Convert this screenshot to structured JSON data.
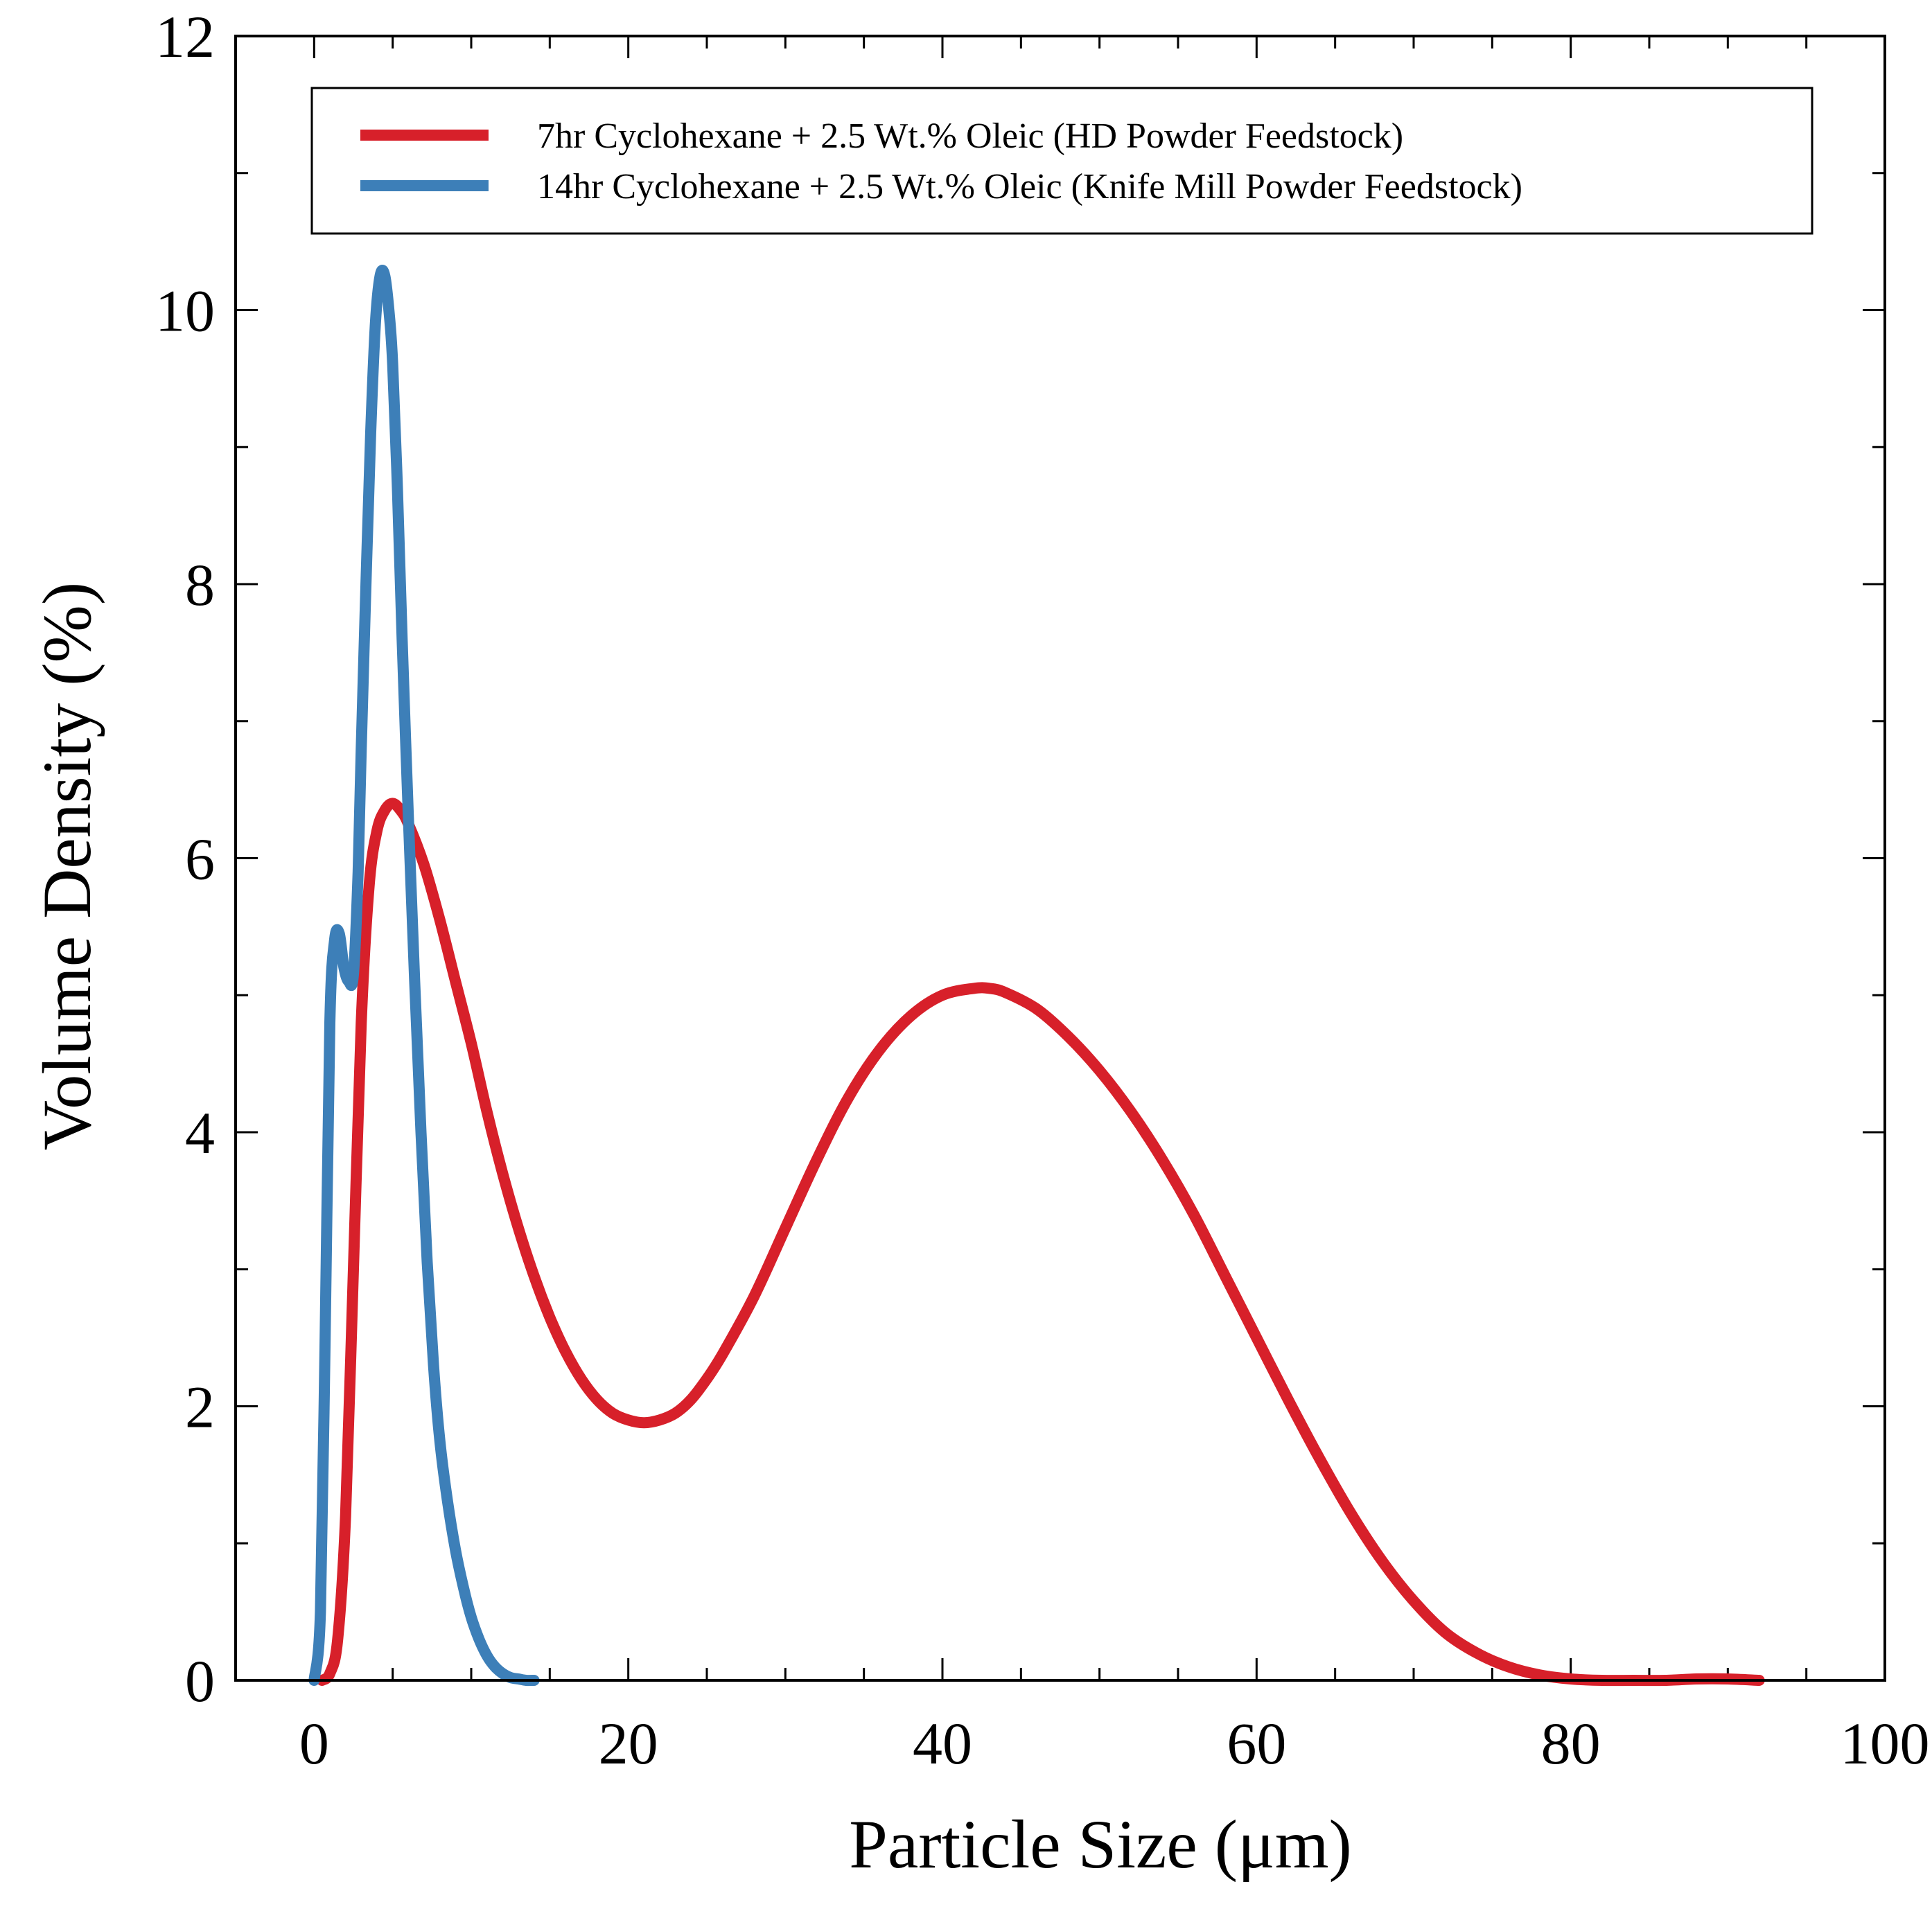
{
  "chart_data": {
    "type": "line",
    "title": "",
    "xlabel": "Particle Size (μm)",
    "ylabel": "Volume Density (%)",
    "xlim": [
      -5,
      100
    ],
    "ylim": [
      0,
      12
    ],
    "xticks": [
      0,
      20,
      40,
      60,
      80,
      100
    ],
    "xtick_labels": [
      "0",
      "20",
      "40",
      "60",
      "80",
      "100"
    ],
    "yticks": [
      0,
      2,
      4,
      6,
      8,
      10,
      12
    ],
    "ytick_labels": [
      "0",
      "2",
      "4",
      "6",
      "8",
      "10",
      "12"
    ],
    "grid": false,
    "legend_position": "top",
    "series": [
      {
        "name": "7hr Cyclohexane + 2.5 Wt.% Oleic (HD Powder Feedstock)",
        "color": "#d7202a",
        "x": [
          0.5,
          1.0,
          1.5,
          2.0,
          2.5,
          3.0,
          3.5,
          4.0,
          4.5,
          5.0,
          5.5,
          6.0,
          7.0,
          8.0,
          9.0,
          10.0,
          11.0,
          12.0,
          13.0,
          14.0,
          15.0,
          16.0,
          17.0,
          18.0,
          19.0,
          20.0,
          21.0,
          22.0,
          23.0,
          24.0,
          25.0,
          26.0,
          28.0,
          30.0,
          32.0,
          34.0,
          36.0,
          38.0,
          40.0,
          42.0,
          43.0,
          44.0,
          46.0,
          48.0,
          50.0,
          52.0,
          54.0,
          56.0,
          58.0,
          60.0,
          62.0,
          64.0,
          66.0,
          68.0,
          70.0,
          72.0,
          74.0,
          76.0,
          78.0,
          80.0,
          82.0,
          84.0,
          86.0,
          88.0,
          90.0,
          92.0
        ],
        "values": [
          0.0,
          0.05,
          0.3,
          1.2,
          3.0,
          4.8,
          5.8,
          6.2,
          6.35,
          6.4,
          6.35,
          6.25,
          5.95,
          5.55,
          5.1,
          4.65,
          4.15,
          3.7,
          3.3,
          2.95,
          2.65,
          2.4,
          2.2,
          2.05,
          1.95,
          1.9,
          1.88,
          1.9,
          1.95,
          2.05,
          2.2,
          2.38,
          2.8,
          3.3,
          3.8,
          4.25,
          4.6,
          4.85,
          5.0,
          5.05,
          5.05,
          5.02,
          4.9,
          4.7,
          4.45,
          4.15,
          3.8,
          3.4,
          2.95,
          2.5,
          2.05,
          1.62,
          1.22,
          0.87,
          0.58,
          0.35,
          0.2,
          0.1,
          0.04,
          0.01,
          0.0,
          0.0,
          0.0,
          0.01,
          0.01,
          0.0
        ]
      },
      {
        "name": "14hr Cyclohexane + 2.5 Wt.% Oleic (Knife Mill Powder Feedstock)",
        "color": "#3d7fb8",
        "x": [
          0.0,
          0.4,
          0.7,
          1.0,
          1.3,
          1.6,
          1.9,
          2.2,
          2.5,
          2.8,
          3.0,
          3.3,
          3.6,
          3.9,
          4.2,
          4.5,
          4.8,
          5.0,
          5.3,
          5.6,
          6.0,
          6.4,
          6.8,
          7.2,
          7.6,
          8.0,
          8.5,
          9.0,
          9.5,
          10.0,
          10.5,
          11.0,
          11.5,
          12.0,
          12.5,
          13.0,
          13.5,
          14.0
        ],
        "values": [
          0.0,
          0.5,
          2.5,
          4.8,
          5.4,
          5.45,
          5.2,
          5.1,
          5.15,
          5.9,
          6.8,
          8.0,
          9.1,
          9.9,
          10.25,
          10.25,
          9.95,
          9.6,
          8.7,
          7.6,
          6.3,
          5.1,
          4.0,
          3.05,
          2.3,
          1.75,
          1.3,
          0.95,
          0.68,
          0.46,
          0.3,
          0.18,
          0.1,
          0.05,
          0.02,
          0.01,
          0.0,
          0.0
        ]
      }
    ]
  }
}
